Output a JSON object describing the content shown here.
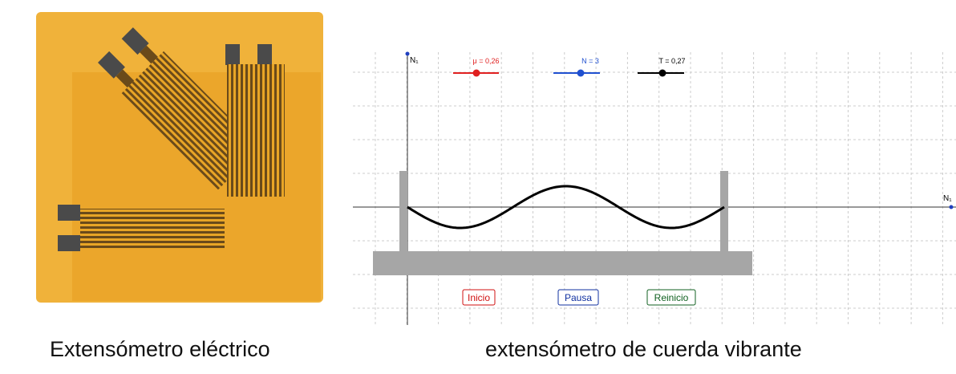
{
  "photo_caption": "Extensómetro eléctrico",
  "applet_caption": "extensómetro de cuerda vibrante",
  "applet": {
    "y_axis_label": "N₁",
    "x_axis_label": "N₁",
    "sliders": [
      {
        "label": "μ = 0,26",
        "color": "#e02020"
      },
      {
        "label": "N = 3",
        "color": "#2050d0"
      },
      {
        "label": "T = 0,27",
        "color": "#000000"
      }
    ],
    "buttons": [
      {
        "label": "Inicio",
        "color": "#d01010"
      },
      {
        "label": "Pausa",
        "color": "#1030a0"
      },
      {
        "label": "Reinicio",
        "color": "#106020"
      }
    ]
  }
}
